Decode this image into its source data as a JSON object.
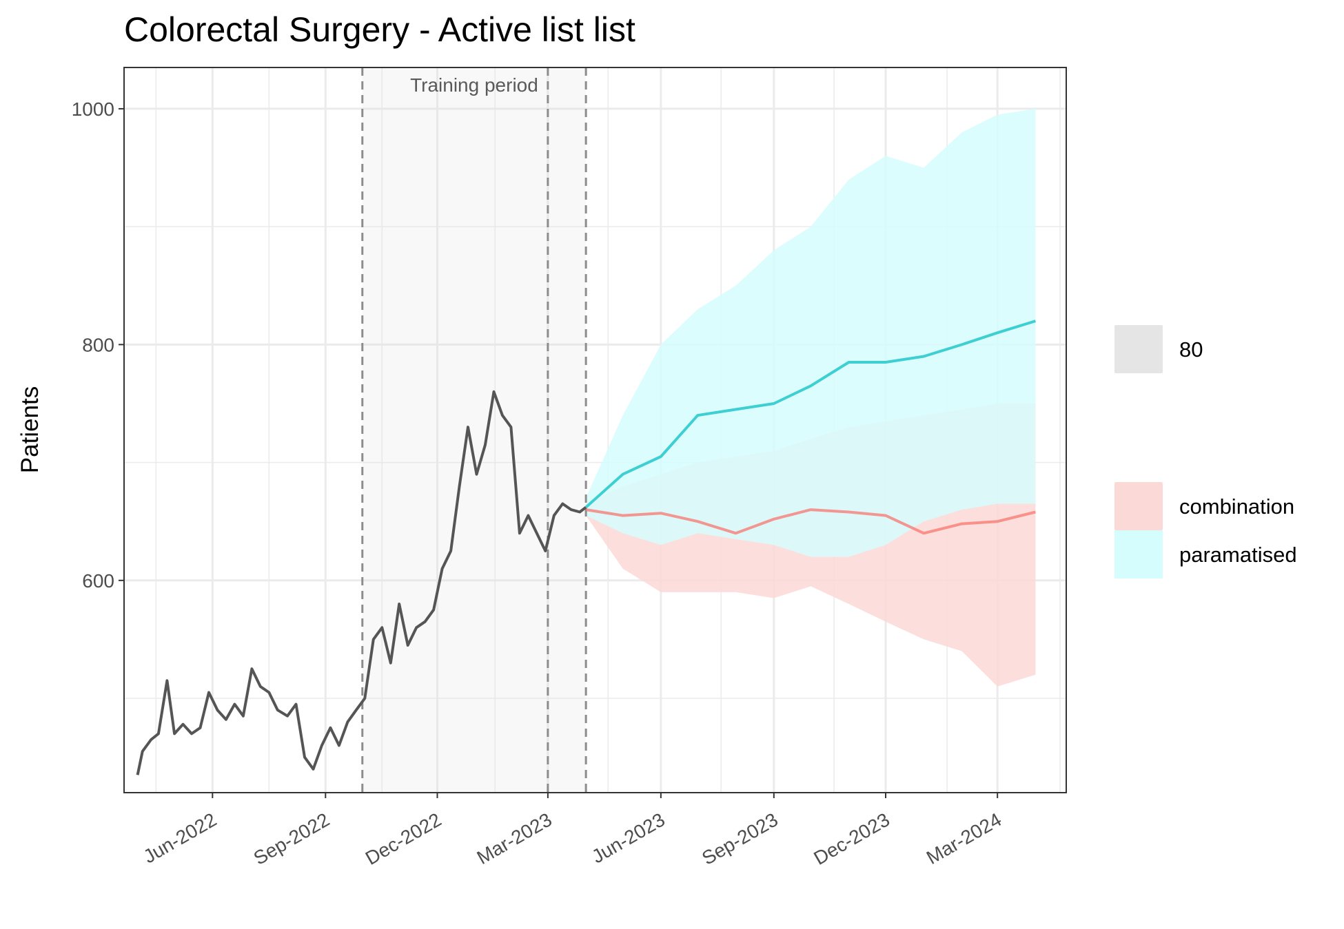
{
  "chart_data": {
    "type": "line",
    "title": "Colorectal Surgery - Active list list",
    "xlabel": "",
    "ylabel": "Patients",
    "x_ticks": [
      "Jun-2022",
      "Sep-2022",
      "Dec-2022",
      "Mar-2023",
      "Jun-2023",
      "Sep-2023",
      "Dec-2023",
      "Mar-2024"
    ],
    "y_ticks": [
      "600",
      "800",
      "1000"
    ],
    "xlim": [
      "2022-03-21",
      "2024-04-26"
    ],
    "ylim": [
      420,
      1035
    ],
    "grid": true,
    "legend_position": "right",
    "annotation": "Training period",
    "reference_lines": [
      "2022-10-01",
      "2023-03-01",
      "2023-04-01"
    ],
    "shaded_region": [
      "2022-10-01",
      "2023-04-01"
    ],
    "legend": [
      {
        "label": "80",
        "color": "#e5e5e5"
      },
      {
        "label": "combination",
        "color": "#fbd9d6"
      },
      {
        "label": "paramatised",
        "color": "#d6fdfe"
      }
    ],
    "observed": {
      "name": "",
      "color": "#555555",
      "points": [
        [
          "2022-04-01",
          435
        ],
        [
          "2022-04-05",
          455
        ],
        [
          "2022-04-12",
          465
        ],
        [
          "2022-04-18",
          470
        ],
        [
          "2022-04-25",
          515
        ],
        [
          "2022-05-01",
          470
        ],
        [
          "2022-05-08",
          478
        ],
        [
          "2022-05-15",
          470
        ],
        [
          "2022-05-22",
          475
        ],
        [
          "2022-05-29",
          505
        ],
        [
          "2022-06-05",
          490
        ],
        [
          "2022-06-12",
          482
        ],
        [
          "2022-06-19",
          495
        ],
        [
          "2022-06-26",
          485
        ],
        [
          "2022-07-03",
          525
        ],
        [
          "2022-07-10",
          510
        ],
        [
          "2022-07-17",
          505
        ],
        [
          "2022-07-24",
          490
        ],
        [
          "2022-08-01",
          485
        ],
        [
          "2022-08-08",
          495
        ],
        [
          "2022-08-15",
          450
        ],
        [
          "2022-08-22",
          440
        ],
        [
          "2022-08-29",
          460
        ],
        [
          "2022-09-05",
          475
        ],
        [
          "2022-09-12",
          460
        ],
        [
          "2022-09-19",
          480
        ],
        [
          "2022-09-26",
          490
        ],
        [
          "2022-10-03",
          500
        ],
        [
          "2022-10-10",
          550
        ],
        [
          "2022-10-17",
          560
        ],
        [
          "2022-10-24",
          530
        ],
        [
          "2022-10-31",
          580
        ],
        [
          "2022-11-07",
          545
        ],
        [
          "2022-11-14",
          560
        ],
        [
          "2022-11-21",
          565
        ],
        [
          "2022-11-28",
          575
        ],
        [
          "2022-12-05",
          610
        ],
        [
          "2022-12-12",
          625
        ],
        [
          "2022-12-19",
          680
        ],
        [
          "2022-12-26",
          730
        ],
        [
          "2023-01-02",
          690
        ],
        [
          "2023-01-09",
          715
        ],
        [
          "2023-01-16",
          760
        ],
        [
          "2023-01-23",
          740
        ],
        [
          "2023-01-30",
          730
        ],
        [
          "2023-02-06",
          640
        ],
        [
          "2023-02-13",
          655
        ],
        [
          "2023-02-20",
          640
        ],
        [
          "2023-02-27",
          625
        ],
        [
          "2023-03-06",
          655
        ],
        [
          "2023-03-13",
          665
        ],
        [
          "2023-03-20",
          660
        ],
        [
          "2023-03-27",
          658
        ],
        [
          "2023-04-01",
          662
        ]
      ]
    },
    "series": [
      {
        "name": "combination",
        "color": "#f8766d",
        "fill": "#fbd9d6",
        "points": [
          [
            "2023-04-01",
            660
          ],
          [
            "2023-05-01",
            655
          ],
          [
            "2023-06-01",
            657
          ],
          [
            "2023-07-01",
            650
          ],
          [
            "2023-08-01",
            640
          ],
          [
            "2023-09-01",
            652
          ],
          [
            "2023-10-01",
            660
          ],
          [
            "2023-11-01",
            658
          ],
          [
            "2023-12-01",
            655
          ],
          [
            "2024-01-01",
            640
          ],
          [
            "2024-02-01",
            648
          ],
          [
            "2024-03-01",
            650
          ],
          [
            "2024-04-01",
            658
          ]
        ],
        "lower": [
          [
            "2023-04-01",
            655
          ],
          [
            "2023-05-01",
            610
          ],
          [
            "2023-06-01",
            590
          ],
          [
            "2023-07-01",
            590
          ],
          [
            "2023-08-01",
            590
          ],
          [
            "2023-09-01",
            585
          ],
          [
            "2023-10-01",
            595
          ],
          [
            "2023-11-01",
            580
          ],
          [
            "2023-12-01",
            565
          ],
          [
            "2024-01-01",
            550
          ],
          [
            "2024-02-01",
            540
          ],
          [
            "2024-03-01",
            510
          ],
          [
            "2024-04-01",
            520
          ]
        ],
        "upper": [
          [
            "2023-04-01",
            665
          ],
          [
            "2023-05-01",
            680
          ],
          [
            "2023-06-01",
            690
          ],
          [
            "2023-07-01",
            700
          ],
          [
            "2023-08-01",
            705
          ],
          [
            "2023-09-01",
            710
          ],
          [
            "2023-10-01",
            720
          ],
          [
            "2023-11-01",
            730
          ],
          [
            "2023-12-01",
            735
          ],
          [
            "2024-01-01",
            740
          ],
          [
            "2024-02-01",
            745
          ],
          [
            "2024-03-01",
            750
          ],
          [
            "2024-04-01",
            750
          ]
        ]
      },
      {
        "name": "paramatised",
        "color": "#3dcfd1",
        "fill": "#d6fdfe",
        "points": [
          [
            "2023-04-01",
            662
          ],
          [
            "2023-05-01",
            690
          ],
          [
            "2023-06-01",
            705
          ],
          [
            "2023-07-01",
            740
          ],
          [
            "2023-08-01",
            745
          ],
          [
            "2023-09-01",
            750
          ],
          [
            "2023-10-01",
            765
          ],
          [
            "2023-11-01",
            785
          ],
          [
            "2023-12-01",
            785
          ],
          [
            "2024-01-01",
            790
          ],
          [
            "2024-02-01",
            800
          ],
          [
            "2024-03-01",
            810
          ],
          [
            "2024-04-01",
            820
          ]
        ],
        "lower": [
          [
            "2023-04-01",
            655
          ],
          [
            "2023-05-01",
            640
          ],
          [
            "2023-06-01",
            630
          ],
          [
            "2023-07-01",
            640
          ],
          [
            "2023-08-01",
            635
          ],
          [
            "2023-09-01",
            630
          ],
          [
            "2023-10-01",
            620
          ],
          [
            "2023-11-01",
            620
          ],
          [
            "2023-12-01",
            630
          ],
          [
            "2024-01-01",
            650
          ],
          [
            "2024-02-01",
            660
          ],
          [
            "2024-03-01",
            665
          ],
          [
            "2024-04-01",
            665
          ]
        ],
        "upper": [
          [
            "2023-04-01",
            670
          ],
          [
            "2023-05-01",
            740
          ],
          [
            "2023-06-01",
            800
          ],
          [
            "2023-07-01",
            830
          ],
          [
            "2023-08-01",
            850
          ],
          [
            "2023-09-01",
            880
          ],
          [
            "2023-10-01",
            900
          ],
          [
            "2023-11-01",
            940
          ],
          [
            "2023-12-01",
            960
          ],
          [
            "2024-01-01",
            950
          ],
          [
            "2024-02-01",
            980
          ],
          [
            "2024-03-01",
            995
          ],
          [
            "2024-04-01",
            1000
          ]
        ]
      }
    ]
  }
}
